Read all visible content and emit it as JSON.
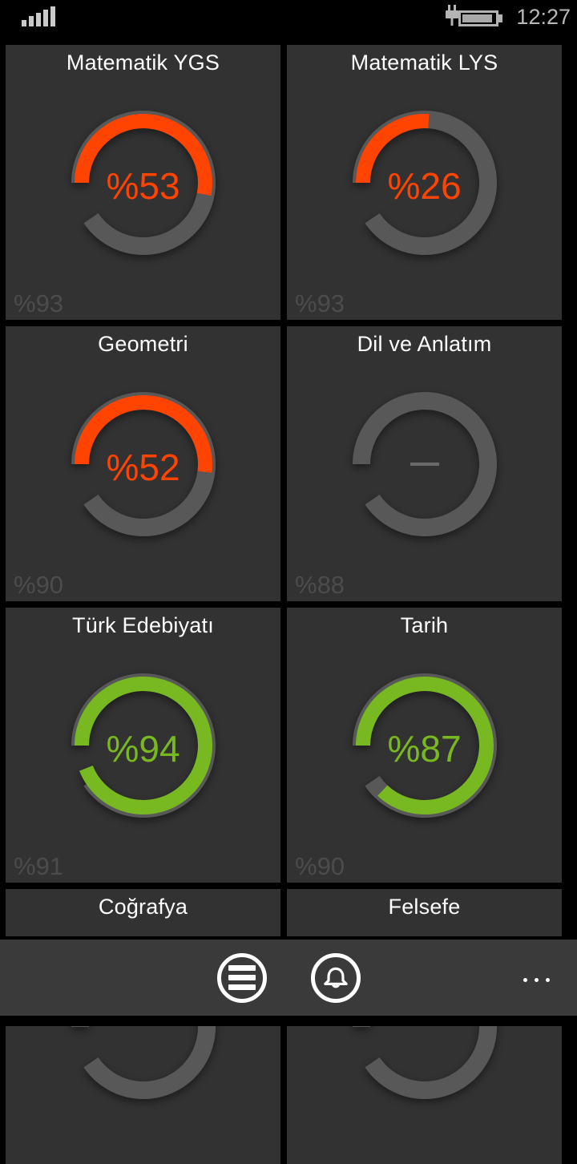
{
  "status_bar": {
    "time": "12:27",
    "signal_icon": "signal-strength-bars",
    "signal_bar_count": 5,
    "battery_icon": "battery-charging"
  },
  "colors": {
    "page_bg": "#000000",
    "tile_bg": "#323232",
    "appbar_bg": "#3a3a3a",
    "gauge_track": "#585858",
    "low_accent": "#ff4300",
    "high_accent": "#78b821",
    "footer_label": "#4c4c4c",
    "title_text": "#ffffff",
    "status_text": "#b8b8b8"
  },
  "gauge": {
    "type": "radial-progress",
    "start_position": "9-oclock",
    "sweep_direction": "clockwise",
    "track_sweep_deg": 326
  },
  "tiles": [
    {
      "title": "Matematik YGS",
      "percent": 53,
      "center_label": "%53",
      "footer_label": "%93",
      "level": "low"
    },
    {
      "title": "Matematik LYS",
      "percent": 26,
      "center_label": "%26",
      "footer_label": "%93",
      "level": "low"
    },
    {
      "title": "Geometri",
      "percent": 52,
      "center_label": "%52",
      "footer_label": "%90",
      "level": "low"
    },
    {
      "title": "Dil ve Anlatım",
      "percent": null,
      "center_label": "",
      "footer_label": "%88",
      "level": "empty",
      "empty_dash": true
    },
    {
      "title": "Türk Edebiyatı",
      "percent": 94,
      "center_label": "%94",
      "footer_label": "%91",
      "level": "high"
    },
    {
      "title": "Tarih",
      "percent": 87,
      "center_label": "%87",
      "footer_label": "%90",
      "level": "high"
    },
    {
      "title": "Coğrafya",
      "percent": null,
      "center_label": "",
      "footer_label": "",
      "level": "cut-off"
    },
    {
      "title": "Felsefe",
      "percent": null,
      "center_label": "",
      "footer_label": "",
      "level": "cut-off"
    }
  ],
  "app_bar": {
    "menu_button_icon": "menu-lines-circle",
    "notifications_button_icon": "notification-bell-circle",
    "more_button_icon": "ellipsis-dots",
    "more_dot_count": 3
  }
}
